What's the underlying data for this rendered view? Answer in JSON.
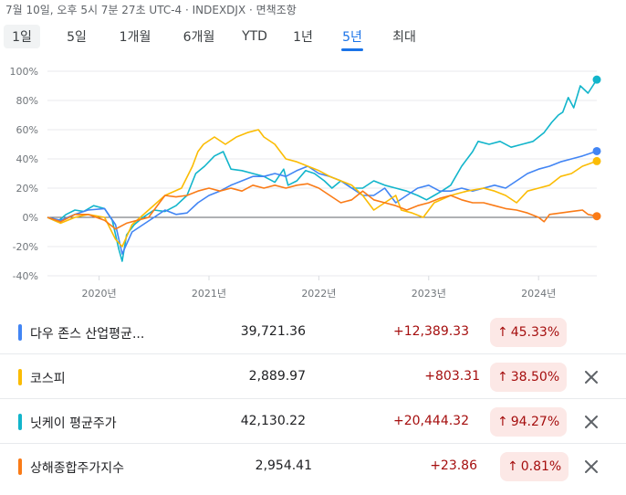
{
  "header": {
    "timestamp": "7월 10일, 오후 5시 7분 27초 UTC-4 · INDEXDJX · 면책조항"
  },
  "tabs": [
    {
      "label": "1일",
      "highlighted": true
    },
    {
      "label": "5일"
    },
    {
      "label": "1개월"
    },
    {
      "label": "6개월"
    },
    {
      "label": "YTD"
    },
    {
      "label": "1년"
    },
    {
      "label": "5년",
      "selected": true
    },
    {
      "label": "최대"
    }
  ],
  "chart_data": {
    "type": "line",
    "title": "",
    "xlabel": "",
    "ylabel": "",
    "x_ticks": [
      "2020년",
      "2021년",
      "2022년",
      "2023년",
      "2024년"
    ],
    "x_tick_positions": [
      2020.0,
      2021.0,
      2022.0,
      2023.0,
      2024.0
    ],
    "xlim": [
      2019.53,
      2024.53
    ],
    "y_ticks": [
      "100%",
      "80%",
      "60%",
      "40%",
      "20%",
      "0%",
      "-20%",
      "-40%"
    ],
    "y_tick_values": [
      100,
      80,
      60,
      40,
      20,
      0,
      -20,
      -40
    ],
    "ylim": [
      -40,
      100
    ],
    "grid": "horizontal",
    "baseline": 0,
    "series": [
      {
        "name": "닛케이 평균주가",
        "color": "#12b5cb",
        "x": [
          2019.53,
          2019.62,
          2019.7,
          2019.78,
          2019.86,
          2019.95,
          2020.05,
          2020.12,
          2020.18,
          2020.21,
          2020.25,
          2020.32,
          2020.4,
          2020.5,
          2020.6,
          2020.7,
          2020.8,
          2020.88,
          2020.96,
          2021.05,
          2021.13,
          2021.2,
          2021.3,
          2021.4,
          2021.5,
          2021.6,
          2021.68,
          2021.72,
          2021.8,
          2021.88,
          2021.96,
          2022.05,
          2022.12,
          2022.2,
          2022.3,
          2022.4,
          2022.5,
          2022.6,
          2022.7,
          2022.8,
          2022.9,
          2022.98,
          2023.05,
          2023.12,
          2023.2,
          2023.3,
          2023.4,
          2023.45,
          2023.55,
          2023.65,
          2023.75,
          2023.85,
          2023.95,
          2024.0,
          2024.05,
          2024.12,
          2024.18,
          2024.22,
          2024.27,
          2024.32,
          2024.38,
          2024.45,
          2024.53
        ],
        "y": [
          0,
          -3,
          2,
          5,
          4,
          8,
          6,
          -2,
          -22,
          -30,
          -12,
          -5,
          0,
          5,
          4,
          8,
          15,
          30,
          35,
          42,
          45,
          33,
          32,
          30,
          28,
          24,
          33,
          22,
          25,
          32,
          30,
          25,
          20,
          25,
          20,
          20,
          25,
          22,
          20,
          18,
          15,
          12,
          15,
          18,
          22,
          35,
          45,
          52,
          50,
          52,
          48,
          50,
          52,
          55,
          58,
          65,
          70,
          72,
          82,
          75,
          90,
          85,
          94.27
        ]
      },
      {
        "name": "다우 존스 산업평균지수",
        "color": "#4285f4",
        "x": [
          2019.53,
          2019.65,
          2019.78,
          2019.9,
          2020.05,
          2020.15,
          2020.21,
          2020.3,
          2020.4,
          2020.5,
          2020.6,
          2020.7,
          2020.8,
          2020.9,
          2021.0,
          2021.1,
          2021.2,
          2021.3,
          2021.4,
          2021.5,
          2021.6,
          2021.7,
          2021.8,
          2021.9,
          2022.0,
          2022.1,
          2022.2,
          2022.3,
          2022.4,
          2022.5,
          2022.6,
          2022.7,
          2022.8,
          2022.9,
          2023.0,
          2023.1,
          2023.2,
          2023.3,
          2023.4,
          2023.5,
          2023.6,
          2023.7,
          2023.8,
          2023.9,
          2024.0,
          2024.1,
          2024.2,
          2024.3,
          2024.4,
          2024.53
        ],
        "y": [
          0,
          -2,
          2,
          5,
          6,
          -5,
          -25,
          -10,
          -5,
          0,
          5,
          2,
          3,
          10,
          15,
          18,
          22,
          25,
          28,
          28,
          30,
          28,
          32,
          35,
          30,
          28,
          25,
          20,
          15,
          15,
          20,
          10,
          15,
          20,
          22,
          18,
          18,
          20,
          18,
          20,
          22,
          20,
          25,
          30,
          33,
          35,
          38,
          40,
          42,
          45.33
        ]
      },
      {
        "name": "코스피",
        "color": "#fbbc04",
        "x": [
          2019.53,
          2019.65,
          2019.78,
          2019.9,
          2020.05,
          2020.15,
          2020.21,
          2020.3,
          2020.45,
          2020.6,
          2020.75,
          2020.85,
          2020.9,
          2020.95,
          2021.05,
          2021.15,
          2021.25,
          2021.35,
          2021.45,
          2021.5,
          2021.6,
          2021.65,
          2021.7,
          2021.8,
          2021.9,
          2022.0,
          2022.1,
          2022.2,
          2022.3,
          2022.4,
          2022.5,
          2022.6,
          2022.7,
          2022.75,
          2022.85,
          2022.95,
          2023.05,
          2023.2,
          2023.35,
          2023.5,
          2023.6,
          2023.7,
          2023.8,
          2023.9,
          2024.0,
          2024.1,
          2024.2,
          2024.3,
          2024.4,
          2024.53
        ],
        "y": [
          0,
          -4,
          0,
          2,
          0,
          -15,
          -20,
          -5,
          5,
          15,
          20,
          35,
          45,
          50,
          55,
          50,
          55,
          58,
          60,
          55,
          50,
          45,
          40,
          38,
          35,
          32,
          28,
          25,
          22,
          15,
          5,
          10,
          15,
          5,
          3,
          0,
          10,
          15,
          18,
          20,
          18,
          15,
          10,
          18,
          20,
          22,
          28,
          30,
          35,
          38.5
        ]
      },
      {
        "name": "상해종합주가지수",
        "color": "#fa7b17",
        "x": [
          2019.53,
          2019.65,
          2019.78,
          2019.9,
          2020.05,
          2020.15,
          2020.25,
          2020.35,
          2020.45,
          2020.55,
          2020.6,
          2020.7,
          2020.8,
          2020.9,
          2021.0,
          2021.1,
          2021.2,
          2021.3,
          2021.4,
          2021.5,
          2021.6,
          2021.7,
          2021.8,
          2021.9,
          2022.0,
          2022.1,
          2022.2,
          2022.3,
          2022.4,
          2022.5,
          2022.6,
          2022.7,
          2022.8,
          2022.9,
          2023.0,
          2023.1,
          2023.2,
          2023.3,
          2023.4,
          2023.5,
          2023.6,
          2023.7,
          2023.8,
          2023.9,
          2024.0,
          2024.05,
          2024.1,
          2024.2,
          2024.3,
          2024.4,
          2024.45,
          2024.53
        ],
        "y": [
          0,
          -3,
          2,
          2,
          -2,
          -8,
          -4,
          -2,
          0,
          10,
          15,
          14,
          15,
          18,
          20,
          18,
          20,
          18,
          22,
          20,
          22,
          20,
          22,
          23,
          20,
          15,
          10,
          12,
          18,
          12,
          10,
          8,
          5,
          8,
          10,
          13,
          15,
          12,
          10,
          10,
          8,
          6,
          5,
          3,
          0,
          -3,
          2,
          3,
          4,
          5,
          2,
          0.81
        ]
      }
    ]
  },
  "rows": [
    {
      "name": "다우 존스 산업평균...",
      "price": "39,721.36",
      "change": "+12,389.33",
      "pct": "45.33%",
      "color": "#4285f4",
      "closable": false
    },
    {
      "name": "코스피",
      "price": "2,889.97",
      "change": "+803.31",
      "pct": "38.50%",
      "color": "#fbbc04",
      "closable": true
    },
    {
      "name": "닛케이 평균주가",
      "price": "42,130.22",
      "change": "+20,444.32",
      "pct": "94.27%",
      "color": "#12b5cb",
      "closable": true
    },
    {
      "name": "상해종합주가지수",
      "price": "2,954.41",
      "change": "+23.86",
      "pct": "0.81%",
      "color": "#fa7b17",
      "closable": true
    }
  ],
  "icons": {
    "up_arrow": "arrow-up-icon",
    "close": "close-icon"
  }
}
